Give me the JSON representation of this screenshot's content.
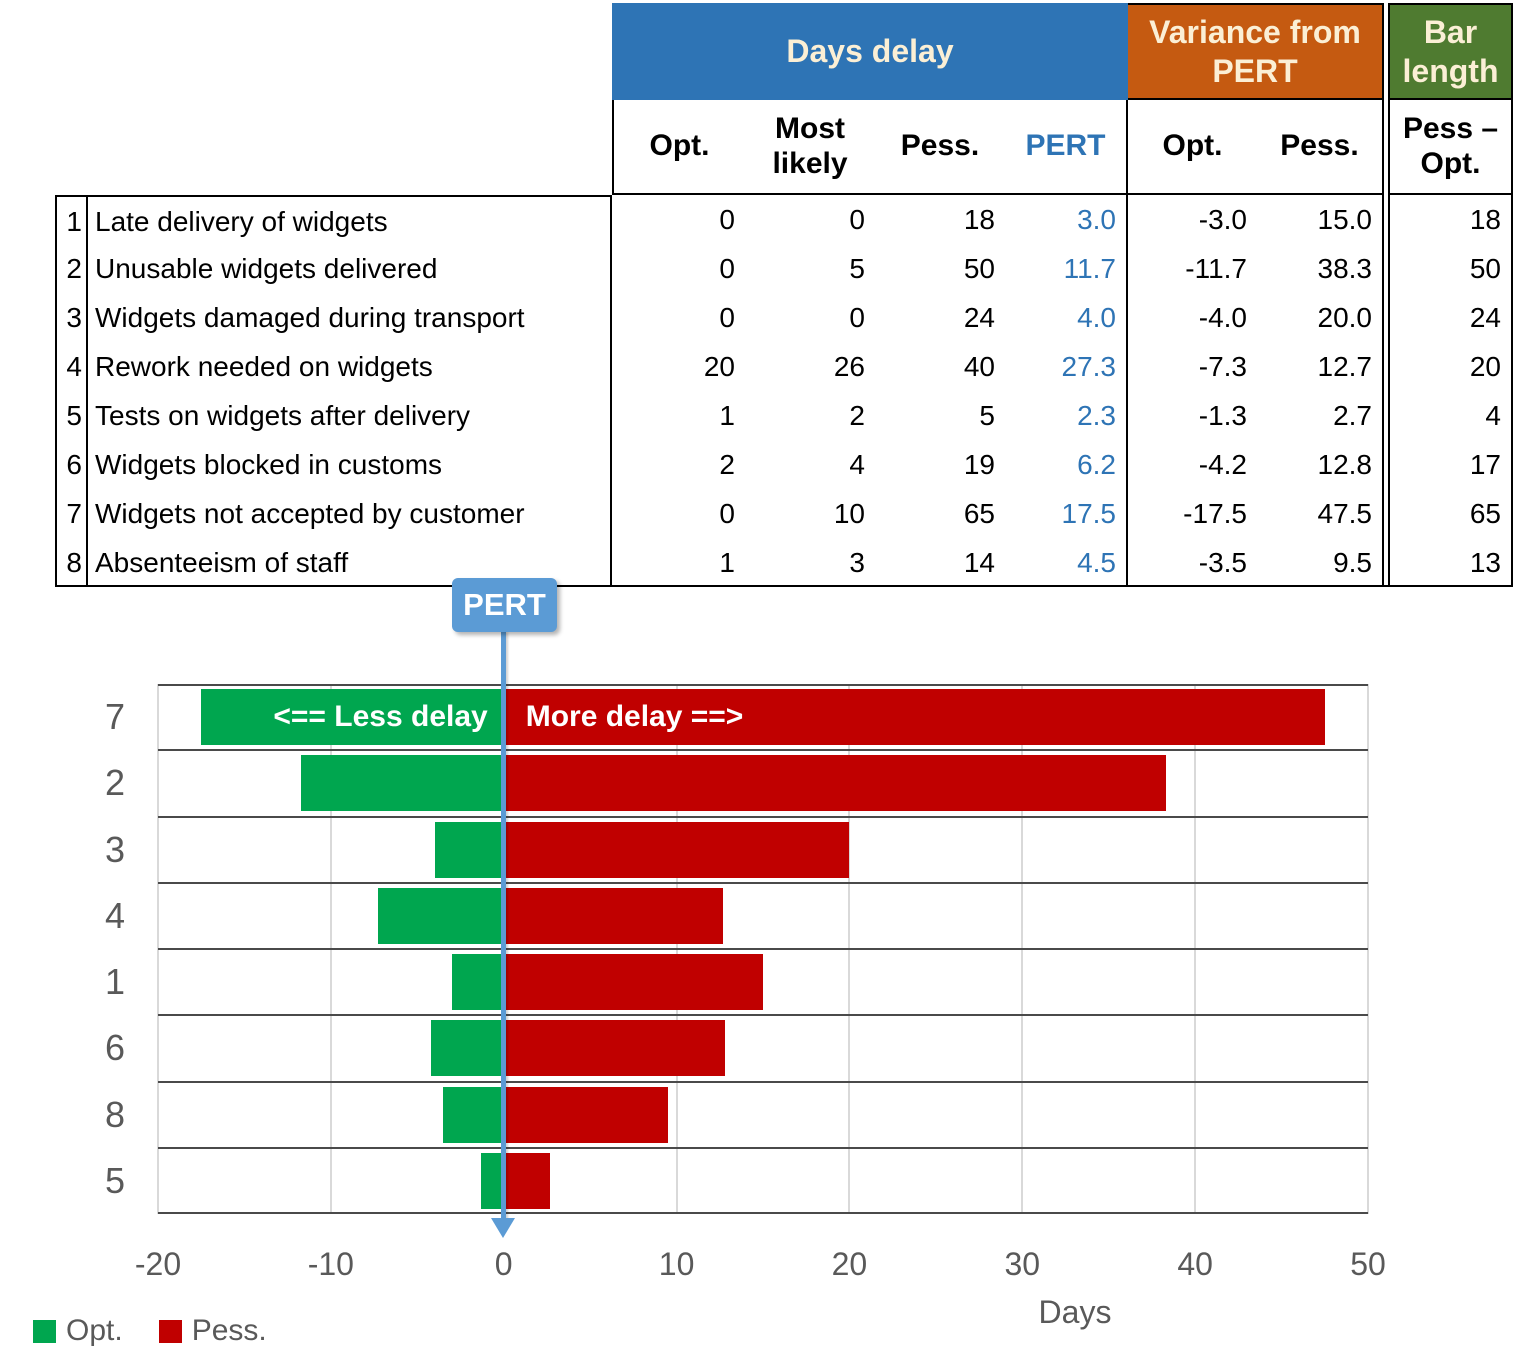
{
  "table": {
    "group_headers": {
      "days_delay": "Days delay",
      "variance": "Variance from PERT",
      "bar_length": "Bar length"
    },
    "sub_headers": {
      "opt": "Opt.",
      "most_likely": "Most likely",
      "pess": "Pess.",
      "pert": "PERT",
      "var_opt": "Opt.",
      "var_pess": "Pess.",
      "pess_minus_opt": "Pess –\nOpt."
    },
    "rows": [
      {
        "num": "1",
        "label": "Late delivery of widgets",
        "opt": "0",
        "most_likely": "0",
        "pess": "18",
        "pert": "3.0",
        "var_opt": "-3.0",
        "var_pess": "15.0",
        "bar_length": "18"
      },
      {
        "num": "2",
        "label": "Unusable widgets delivered",
        "opt": "0",
        "most_likely": "5",
        "pess": "50",
        "pert": "11.7",
        "var_opt": "-11.7",
        "var_pess": "38.3",
        "bar_length": "50"
      },
      {
        "num": "3",
        "label": "Widgets damaged during transport",
        "opt": "0",
        "most_likely": "0",
        "pess": "24",
        "pert": "4.0",
        "var_opt": "-4.0",
        "var_pess": "20.0",
        "bar_length": "24"
      },
      {
        "num": "4",
        "label": "Rework needed on widgets",
        "opt": "20",
        "most_likely": "26",
        "pess": "40",
        "pert": "27.3",
        "var_opt": "-7.3",
        "var_pess": "12.7",
        "bar_length": "20"
      },
      {
        "num": "5",
        "label": "Tests on widgets after delivery",
        "opt": "1",
        "most_likely": "2",
        "pess": "5",
        "pert": "2.3",
        "var_opt": "-1.3",
        "var_pess": "2.7",
        "bar_length": "4"
      },
      {
        "num": "6",
        "label": "Widgets blocked in customs",
        "opt": "2",
        "most_likely": "4",
        "pess": "19",
        "pert": "6.2",
        "var_opt": "-4.2",
        "var_pess": "12.8",
        "bar_length": "17"
      },
      {
        "num": "7",
        "label": "Widgets not accepted by customer",
        "opt": "0",
        "most_likely": "10",
        "pess": "65",
        "pert": "17.5",
        "var_opt": "-17.5",
        "var_pess": "47.5",
        "bar_length": "65"
      },
      {
        "num": "8",
        "label": "Absenteeism of staff",
        "opt": "1",
        "most_likely": "3",
        "pess": "14",
        "pert": "4.5",
        "var_opt": "-3.5",
        "var_pess": "9.5",
        "bar_length": "13"
      }
    ]
  },
  "chart_data": {
    "type": "bar",
    "orientation": "horizontal-tornado",
    "categories": [
      "7",
      "2",
      "3",
      "4",
      "1",
      "6",
      "8",
      "5"
    ],
    "series": [
      {
        "name": "Opt.",
        "color": "#00A64F",
        "values": [
          -17.5,
          -11.7,
          -4.0,
          -7.3,
          -3.0,
          -4.2,
          -3.5,
          -1.3
        ]
      },
      {
        "name": "Pess.",
        "color": "#C00000",
        "values": [
          47.5,
          38.3,
          20.0,
          12.7,
          15.0,
          12.8,
          9.5,
          2.7
        ]
      }
    ],
    "xlabel": "Days",
    "x_ticks": [
      -20,
      -10,
      0,
      10,
      20,
      30,
      40,
      50
    ],
    "xlim": [
      -20,
      50
    ],
    "gridlines": "vertical-light",
    "legend_position": "bottom-left",
    "annotations": {
      "pert_label": "PERT",
      "less_delay": "<== Less delay",
      "more_delay": "More delay ==>"
    }
  },
  "colors": {
    "header_blue": "#2E74B5",
    "header_orange": "#C55A11",
    "header_olive": "#4F7B30",
    "header_text_cream": "#FBEFD5",
    "pert_text_blue": "#2E74B5",
    "opt_green": "#00A64F",
    "pess_red": "#C00000",
    "callout_blue": "#5B9BD5",
    "axis_gray": "#595959",
    "gridline_gray": "#D9D9D9"
  }
}
